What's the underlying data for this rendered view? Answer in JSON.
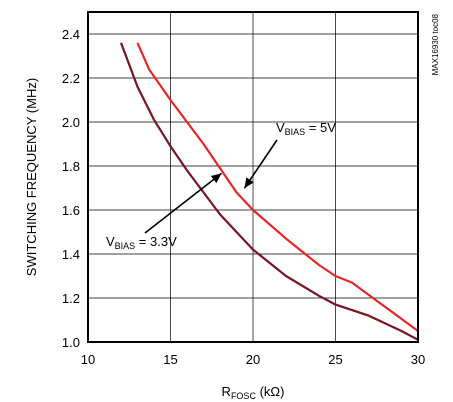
{
  "chart_data": {
    "type": "line",
    "xlabel": {
      "main": "R",
      "sub": "FOSC",
      "unit": " (kΩ)"
    },
    "ylabel": "SWITCHING FREQUENCY (MHz)",
    "xlim": [
      10,
      30
    ],
    "ylim": [
      1.0,
      2.5
    ],
    "xticks": [
      10,
      15,
      20,
      25,
      30
    ],
    "yticks": [
      1.0,
      1.2,
      1.4,
      1.6,
      1.8,
      2.0,
      2.2,
      2.4
    ],
    "xtick_labels": [
      "10",
      "15",
      "20",
      "25",
      "30"
    ],
    "ytick_labels": [
      "1.0",
      "1.2",
      "1.4",
      "1.6",
      "1.8",
      "2.0",
      "2.2",
      "2.4"
    ],
    "grid": true,
    "figure_id": "MAX16930 toc08",
    "series": [
      {
        "name": "VBIAS = 5V",
        "color": "#e8262a",
        "x": [
          13.0,
          13.7,
          15,
          17,
          19,
          20,
          22,
          24,
          25,
          26,
          28,
          30
        ],
        "y": [
          2.36,
          2.24,
          2.1,
          1.9,
          1.68,
          1.6,
          1.47,
          1.35,
          1.3,
          1.27,
          1.16,
          1.05
        ]
      },
      {
        "name": "VBIAS = 3.3V",
        "color": "#7a1424",
        "x": [
          12.0,
          12.5,
          13,
          14,
          15,
          16,
          17,
          18,
          20,
          22,
          24,
          25,
          27,
          29,
          30
        ],
        "y": [
          2.36,
          2.26,
          2.16,
          2.01,
          1.89,
          1.78,
          1.68,
          1.58,
          1.42,
          1.3,
          1.21,
          1.17,
          1.12,
          1.05,
          1.01
        ]
      }
    ],
    "annotations": [
      {
        "text_main": "V",
        "text_sub": "BIAS",
        "text_rest": " = 5V",
        "series": 0,
        "target": [
          19.3,
          1.69
        ]
      },
      {
        "text_main": "V",
        "text_sub": "BIAS",
        "text_rest": " = 3.3V",
        "series": 1,
        "target": [
          17.0,
          1.73
        ]
      }
    ]
  }
}
